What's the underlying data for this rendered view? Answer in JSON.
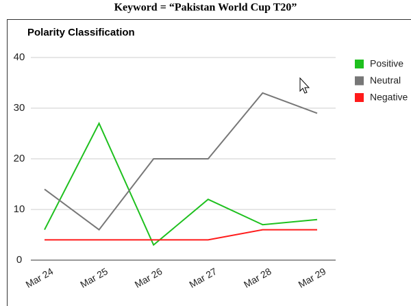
{
  "heading": "Keyword = “Pakistan World Cup T20”",
  "chart_data": {
    "type": "line",
    "title": "Polarity Classification",
    "categories": [
      "Mar 24",
      "Mar 25",
      "Mar 26",
      "Mar 27",
      "Mar 28",
      "Mar 29"
    ],
    "series": [
      {
        "name": "Positive",
        "color": "#1ec01e",
        "values": [
          6,
          27,
          3,
          12,
          7,
          8
        ]
      },
      {
        "name": "Neutral",
        "color": "#777777",
        "values": [
          14,
          6,
          20,
          20,
          33,
          29
        ]
      },
      {
        "name": "Negative",
        "color": "#ff1a1a",
        "values": [
          4,
          4,
          4,
          4,
          6,
          6
        ]
      }
    ],
    "ylim": [
      0,
      40
    ],
    "yticks": [
      0,
      10,
      20,
      30,
      40
    ],
    "grid": true,
    "legend": "right"
  }
}
